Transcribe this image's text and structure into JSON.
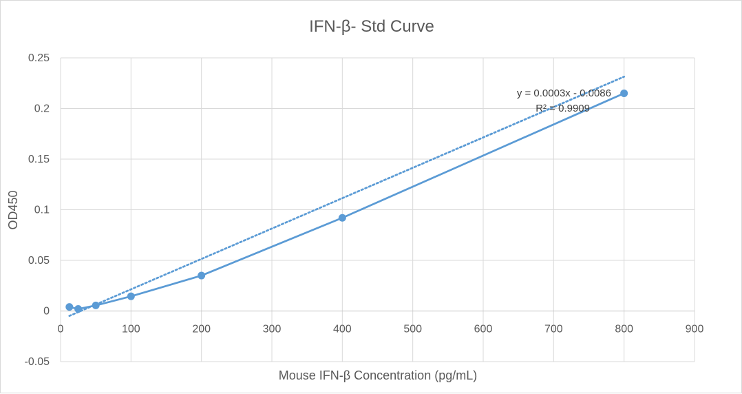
{
  "chart_data": {
    "type": "scatter",
    "title": "IFN-β- Std Curve",
    "xlabel": "Mouse IFN-β Concentration (pg/mL)",
    "ylabel": "OD450",
    "xlim": [
      0,
      900
    ],
    "ylim": [
      -0.05,
      0.25
    ],
    "x_ticks": [
      "0",
      "100",
      "200",
      "300",
      "400",
      "500",
      "600",
      "700",
      "800",
      "900"
    ],
    "y_ticks": [
      "-0.05",
      "0",
      "0.05",
      "0.1",
      "0.15",
      "0.2",
      "0.25"
    ],
    "grid": true,
    "series": [
      {
        "x": [
          12.5,
          25,
          50,
          100,
          200,
          400,
          800
        ],
        "y": [
          0.004,
          0.002,
          0.0055,
          0.0145,
          0.035,
          0.092,
          0.215
        ],
        "style": "line-with-markers",
        "color": "#5b9bd5"
      }
    ],
    "trendline": {
      "type": "linear",
      "slope": 0.0003,
      "intercept": -0.0086,
      "x_range": [
        12.5,
        800
      ],
      "style": "dotted",
      "color": "#5b9bd5",
      "equation_text": "y = 0.0003x - 0.0086",
      "r2_text": "R² = 0.9909"
    }
  }
}
